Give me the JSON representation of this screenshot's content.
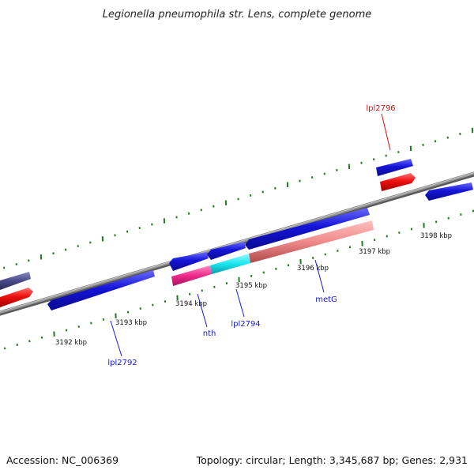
{
  "title": "Legionella pneumophila str. Lens, complete genome",
  "footer": {
    "accession": "Accession: NC_006369",
    "summary": "Topology: circular; Length: 3,345,687 bp; Genes: 2,931"
  },
  "kbp_labels": [
    "3192 kbp",
    "3193 kbp",
    "3194 kbp",
    "3195 kbp",
    "3196 kbp",
    "3197 kbp",
    "3198 kbp"
  ],
  "gene_labels": [
    {
      "name": "lpl2792",
      "color": "#1a1ad0"
    },
    {
      "name": "nth",
      "color": "#1a1ad0"
    },
    {
      "name": "lpl2794",
      "color": "#1a1ad0"
    },
    {
      "name": "metG",
      "color": "#1a1ad0"
    },
    {
      "name": "lpl2796",
      "color": "#d01010"
    }
  ],
  "colors": {
    "backbone": "#8a8a8a",
    "tick": "#1f7a1f",
    "gene_blue": "#1414d8",
    "gene_red": "#ee0f0f",
    "gene_pink": "#ee2a8a",
    "gene_cyan": "#17e6f0",
    "gene_salmon": "#f08a8a",
    "gene_slate": "#4a4a8a"
  }
}
